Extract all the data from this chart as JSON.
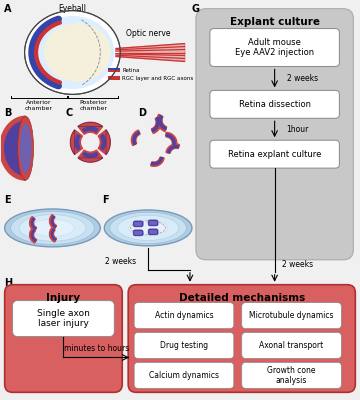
{
  "bg_color": "#f0f0f0",
  "explant_title": "Explant culture",
  "explant_boxes": [
    "Adult mouse\nEye AAV2 injection",
    "Retina dissection",
    "Retina explant culture"
  ],
  "explant_arrows": [
    "2 weeks",
    "1hour"
  ],
  "explant_bottom_label": "2 weeks",
  "injury_title": "Injury",
  "injury_box": "Single axon\nlaser injury",
  "injury_arrow": "minutes to hours",
  "detailed_title": "Detailed mechanisms",
  "detailed_boxes": [
    [
      "Actin dynamics",
      "Microtubule dynamics"
    ],
    [
      "Drug testing",
      "Axonal transport"
    ],
    [
      "Calcium dynamics",
      "Growth cone\nanalysis"
    ]
  ],
  "legend_retina_label": "Retina",
  "legend_rgc_label": "RGC layer and RGC axons",
  "eyeball_label": "Eyeball",
  "optic_nerve_label": "Optic nerve",
  "anterior_label": "Anterior\nchamber",
  "posterior_label": "Posterior\nchamber",
  "gray_panel_color": "#c8c8c8",
  "injury_panel_color": "#d96060",
  "detailed_panel_color": "#d96060",
  "retina_blue": "#3344aa",
  "retina_purple": "#5040a0",
  "rgc_red": "#cc4444",
  "dish_outer": "#a8c8e0",
  "dish_inner": "#c8e0f0",
  "dish_center": "#deeeff"
}
